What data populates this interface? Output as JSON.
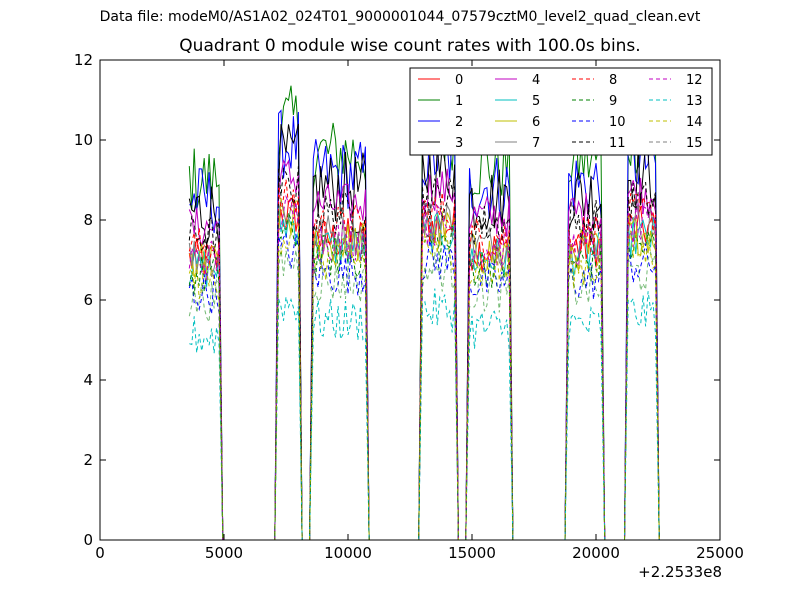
{
  "page_title": "Data file: modeM0/AS1A02_024T01_9000001044_07579cztM0_level2_quad_clean.evt",
  "chart_data": {
    "type": "line",
    "title": "Quadrant 0 module wise count rates with 100.0s bins.",
    "xlabel": "",
    "ylabel": "",
    "xlim": [
      0,
      25000
    ],
    "ylim": [
      0,
      12
    ],
    "x_offset_label": "+2.2533e8",
    "x_ticks": [
      0,
      5000,
      10000,
      15000,
      20000,
      25000
    ],
    "y_ticks": [
      0,
      2,
      4,
      6,
      8,
      10,
      12
    ],
    "grid": false,
    "legend": {
      "placement": "top-right",
      "columns": 4
    },
    "segments": [
      [
        3600,
        4800
      ],
      [
        7200,
        8000
      ],
      [
        8600,
        10700
      ],
      [
        13000,
        14300
      ],
      [
        14900,
        16500
      ],
      [
        18900,
        20200
      ],
      [
        21300,
        22400
      ]
    ],
    "gaps_zero_x": [
      5100,
      7000,
      8150,
      8450,
      10850,
      12800,
      14500,
      14750,
      16700,
      18700,
      20350,
      21150
    ],
    "series": [
      {
        "name": "0",
        "color": "#ff0000",
        "dash": "solid",
        "level": 7.0
      },
      {
        "name": "1",
        "color": "#008000",
        "dash": "solid",
        "level": 9.0
      },
      {
        "name": "2",
        "color": "#0000ff",
        "dash": "solid",
        "level": 8.5
      },
      {
        "name": "3",
        "color": "#000000",
        "dash": "solid",
        "level": 8.2
      },
      {
        "name": "4",
        "color": "#c000c0",
        "dash": "solid",
        "level": 7.8
      },
      {
        "name": "5",
        "color": "#00bfbf",
        "dash": "solid",
        "level": 6.8
      },
      {
        "name": "6",
        "color": "#bfbf00",
        "dash": "solid",
        "level": 6.9
      },
      {
        "name": "7",
        "color": "#808080",
        "dash": "solid",
        "level": 7.1
      },
      {
        "name": "8",
        "color": "#ff0000",
        "dash": "dashed",
        "level": 7.3
      },
      {
        "name": "9",
        "color": "#008000",
        "dash": "dashed",
        "level": 6.6
      },
      {
        "name": "10",
        "color": "#0000ff",
        "dash": "dashed",
        "level": 6.2
      },
      {
        "name": "11",
        "color": "#000000",
        "dash": "dashed",
        "level": 7.6
      },
      {
        "name": "12",
        "color": "#c000c0",
        "dash": "dashed",
        "level": 7.0
      },
      {
        "name": "13",
        "color": "#00bfbf",
        "dash": "dashed",
        "level": 5.1
      },
      {
        "name": "14",
        "color": "#bfbf00",
        "dash": "dashed",
        "level": 6.5
      },
      {
        "name": "15",
        "color": "#808080",
        "dash": "dashed",
        "level": 6.0
      }
    ]
  }
}
